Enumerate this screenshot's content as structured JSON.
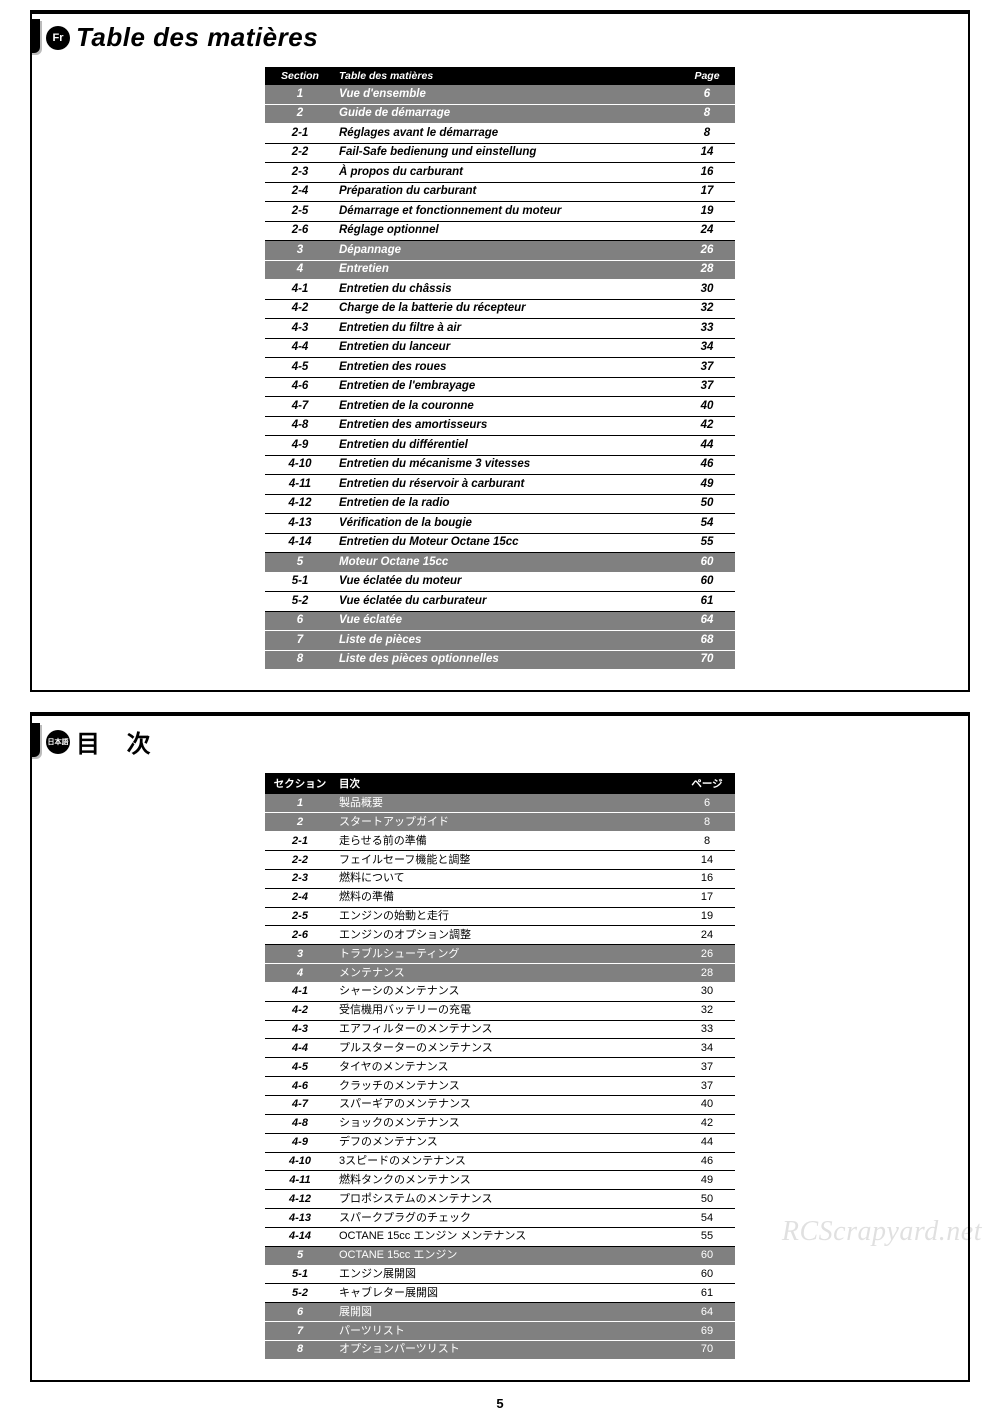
{
  "pageNumber": "5",
  "watermark": "RCScrapyard.net",
  "panels": [
    {
      "langBadge": "Fr",
      "title": "Table des matières",
      "titleClass": "",
      "head": {
        "section": "Section",
        "title": "Table des matières",
        "page": "Page"
      },
      "rows": [
        {
          "t": "main",
          "sec": "1",
          "title": "Vue d'ensemble",
          "page": "6"
        },
        {
          "t": "main",
          "sec": "2",
          "title": "Guide de démarrage",
          "page": "8"
        },
        {
          "t": "sub",
          "sec": "2-1",
          "title": "Réglages avant le démarrage",
          "page": "8"
        },
        {
          "t": "sub",
          "sec": "2-2",
          "title": "Fail-Safe bedienung und einstellung",
          "page": "14"
        },
        {
          "t": "sub",
          "sec": "2-3",
          "title": "À propos du carburant",
          "page": "16"
        },
        {
          "t": "sub",
          "sec": "2-4",
          "title": "Préparation du carburant",
          "page": "17"
        },
        {
          "t": "sub",
          "sec": "2-5",
          "title": "Démarrage et fonctionnement du moteur",
          "page": "19"
        },
        {
          "t": "sub",
          "sec": "2-6",
          "title": "Réglage optionnel",
          "page": "24"
        },
        {
          "t": "main",
          "sec": "3",
          "title": "Dépannage",
          "page": "26"
        },
        {
          "t": "main",
          "sec": "4",
          "title": "Entretien",
          "page": "28"
        },
        {
          "t": "sub",
          "sec": "4-1",
          "title": "Entretien du châssis",
          "page": "30"
        },
        {
          "t": "sub",
          "sec": "4-2",
          "title": "Charge de la batterie du récepteur",
          "page": "32"
        },
        {
          "t": "sub",
          "sec": "4-3",
          "title": "Entretien du filtre à air",
          "page": "33"
        },
        {
          "t": "sub",
          "sec": "4-4",
          "title": "Entretien du lanceur",
          "page": "34"
        },
        {
          "t": "sub",
          "sec": "4-5",
          "title": "Entretien des roues",
          "page": "37"
        },
        {
          "t": "sub",
          "sec": "4-6",
          "title": "Entretien de l'embrayage",
          "page": "37"
        },
        {
          "t": "sub",
          "sec": "4-7",
          "title": "Entretien de la couronne",
          "page": "40"
        },
        {
          "t": "sub",
          "sec": "4-8",
          "title": "Entretien des amortisseurs",
          "page": "42"
        },
        {
          "t": "sub",
          "sec": "4-9",
          "title": "Entretien du différentiel",
          "page": "44"
        },
        {
          "t": "sub",
          "sec": "4-10",
          "title": "Entretien du mécanisme 3 vitesses",
          "page": "46"
        },
        {
          "t": "sub",
          "sec": "4-11",
          "title": "Entretien du réservoir à carburant",
          "page": "49"
        },
        {
          "t": "sub",
          "sec": "4-12",
          "title": "Entretien de la radio",
          "page": "50"
        },
        {
          "t": "sub",
          "sec": "4-13",
          "title": "Vérification de la bougie",
          "page": "54"
        },
        {
          "t": "sub",
          "sec": "4-14",
          "title": "Entretien du Moteur Octane 15cc",
          "page": "55"
        },
        {
          "t": "main",
          "sec": "5",
          "title": "Moteur Octane 15cc",
          "page": "60"
        },
        {
          "t": "sub",
          "sec": "5-1",
          "title": "Vue éclatée du moteur",
          "page": "60"
        },
        {
          "t": "sub",
          "sec": "5-2",
          "title": "Vue éclatée du carburateur",
          "page": "61"
        },
        {
          "t": "main",
          "sec": "6",
          "title": "Vue éclatée",
          "page": "64"
        },
        {
          "t": "main",
          "sec": "7",
          "title": "Liste de pièces",
          "page": "68"
        },
        {
          "t": "main",
          "sec": "8",
          "title": "Liste des pièces optionnelles",
          "page": "70"
        }
      ]
    },
    {
      "langBadge": "日本語",
      "title": "目 次",
      "titleClass": "jp",
      "head": {
        "section": "セクション",
        "title": "目次",
        "page": "ページ"
      },
      "rows": [
        {
          "t": "main",
          "sec": "1",
          "title": "製品概要",
          "page": "6"
        },
        {
          "t": "main",
          "sec": "2",
          "title": "スタートアップガイド",
          "page": "8"
        },
        {
          "t": "sub",
          "sec": "2-1",
          "title": "走らせる前の準備",
          "page": "8"
        },
        {
          "t": "sub",
          "sec": "2-2",
          "title": "フェイルセーフ機能と調整",
          "page": "14"
        },
        {
          "t": "sub",
          "sec": "2-3",
          "title": "燃料について",
          "page": "16"
        },
        {
          "t": "sub",
          "sec": "2-4",
          "title": "燃料の準備",
          "page": "17"
        },
        {
          "t": "sub",
          "sec": "2-5",
          "title": "エンジンの始動と走行",
          "page": "19"
        },
        {
          "t": "sub",
          "sec": "2-6",
          "title": "エンジンのオプション調整",
          "page": "24"
        },
        {
          "t": "main",
          "sec": "3",
          "title": "トラブルシューティング",
          "page": "26"
        },
        {
          "t": "main",
          "sec": "4",
          "title": "メンテナンス",
          "page": "28"
        },
        {
          "t": "sub",
          "sec": "4-1",
          "title": "シャーシのメンテナンス",
          "page": "30"
        },
        {
          "t": "sub",
          "sec": "4-2",
          "title": "受信機用バッテリーの充電",
          "page": "32"
        },
        {
          "t": "sub",
          "sec": "4-3",
          "title": "エアフィルターのメンテナンス",
          "page": "33"
        },
        {
          "t": "sub",
          "sec": "4-4",
          "title": "プルスターターのメンテナンス",
          "page": "34"
        },
        {
          "t": "sub",
          "sec": "4-5",
          "title": "タイヤのメンテナンス",
          "page": "37"
        },
        {
          "t": "sub",
          "sec": "4-6",
          "title": "クラッチのメンテナンス",
          "page": "37"
        },
        {
          "t": "sub",
          "sec": "4-7",
          "title": "スパーギアのメンテナンス",
          "page": "40"
        },
        {
          "t": "sub",
          "sec": "4-8",
          "title": "ショックのメンテナンス",
          "page": "42"
        },
        {
          "t": "sub",
          "sec": "4-9",
          "title": "デフのメンテナンス",
          "page": "44"
        },
        {
          "t": "sub",
          "sec": "4-10",
          "title": "3スピードのメンテナンス",
          "page": "46"
        },
        {
          "t": "sub",
          "sec": "4-11",
          "title": "燃料タンクのメンテナンス",
          "page": "49"
        },
        {
          "t": "sub",
          "sec": "4-12",
          "title": "プロポシステムのメンテナンス",
          "page": "50"
        },
        {
          "t": "sub",
          "sec": "4-13",
          "title": "スパークプラグのチェック",
          "page": "54"
        },
        {
          "t": "sub",
          "sec": "4-14",
          "title": "OCTANE 15cc エンジン メンテナンス",
          "page": "55"
        },
        {
          "t": "main",
          "sec": "5",
          "title": "OCTANE 15cc エンジン",
          "page": "60"
        },
        {
          "t": "sub",
          "sec": "5-1",
          "title": "エンジン展開図",
          "page": "60"
        },
        {
          "t": "sub",
          "sec": "5-2",
          "title": "キャブレター展開図",
          "page": "61"
        },
        {
          "t": "main",
          "sec": "6",
          "title": "展開図",
          "page": "64"
        },
        {
          "t": "main",
          "sec": "7",
          "title": "パーツリスト",
          "page": "69"
        },
        {
          "t": "main",
          "sec": "8",
          "title": "オプションパーツリスト",
          "page": "70"
        }
      ]
    }
  ]
}
